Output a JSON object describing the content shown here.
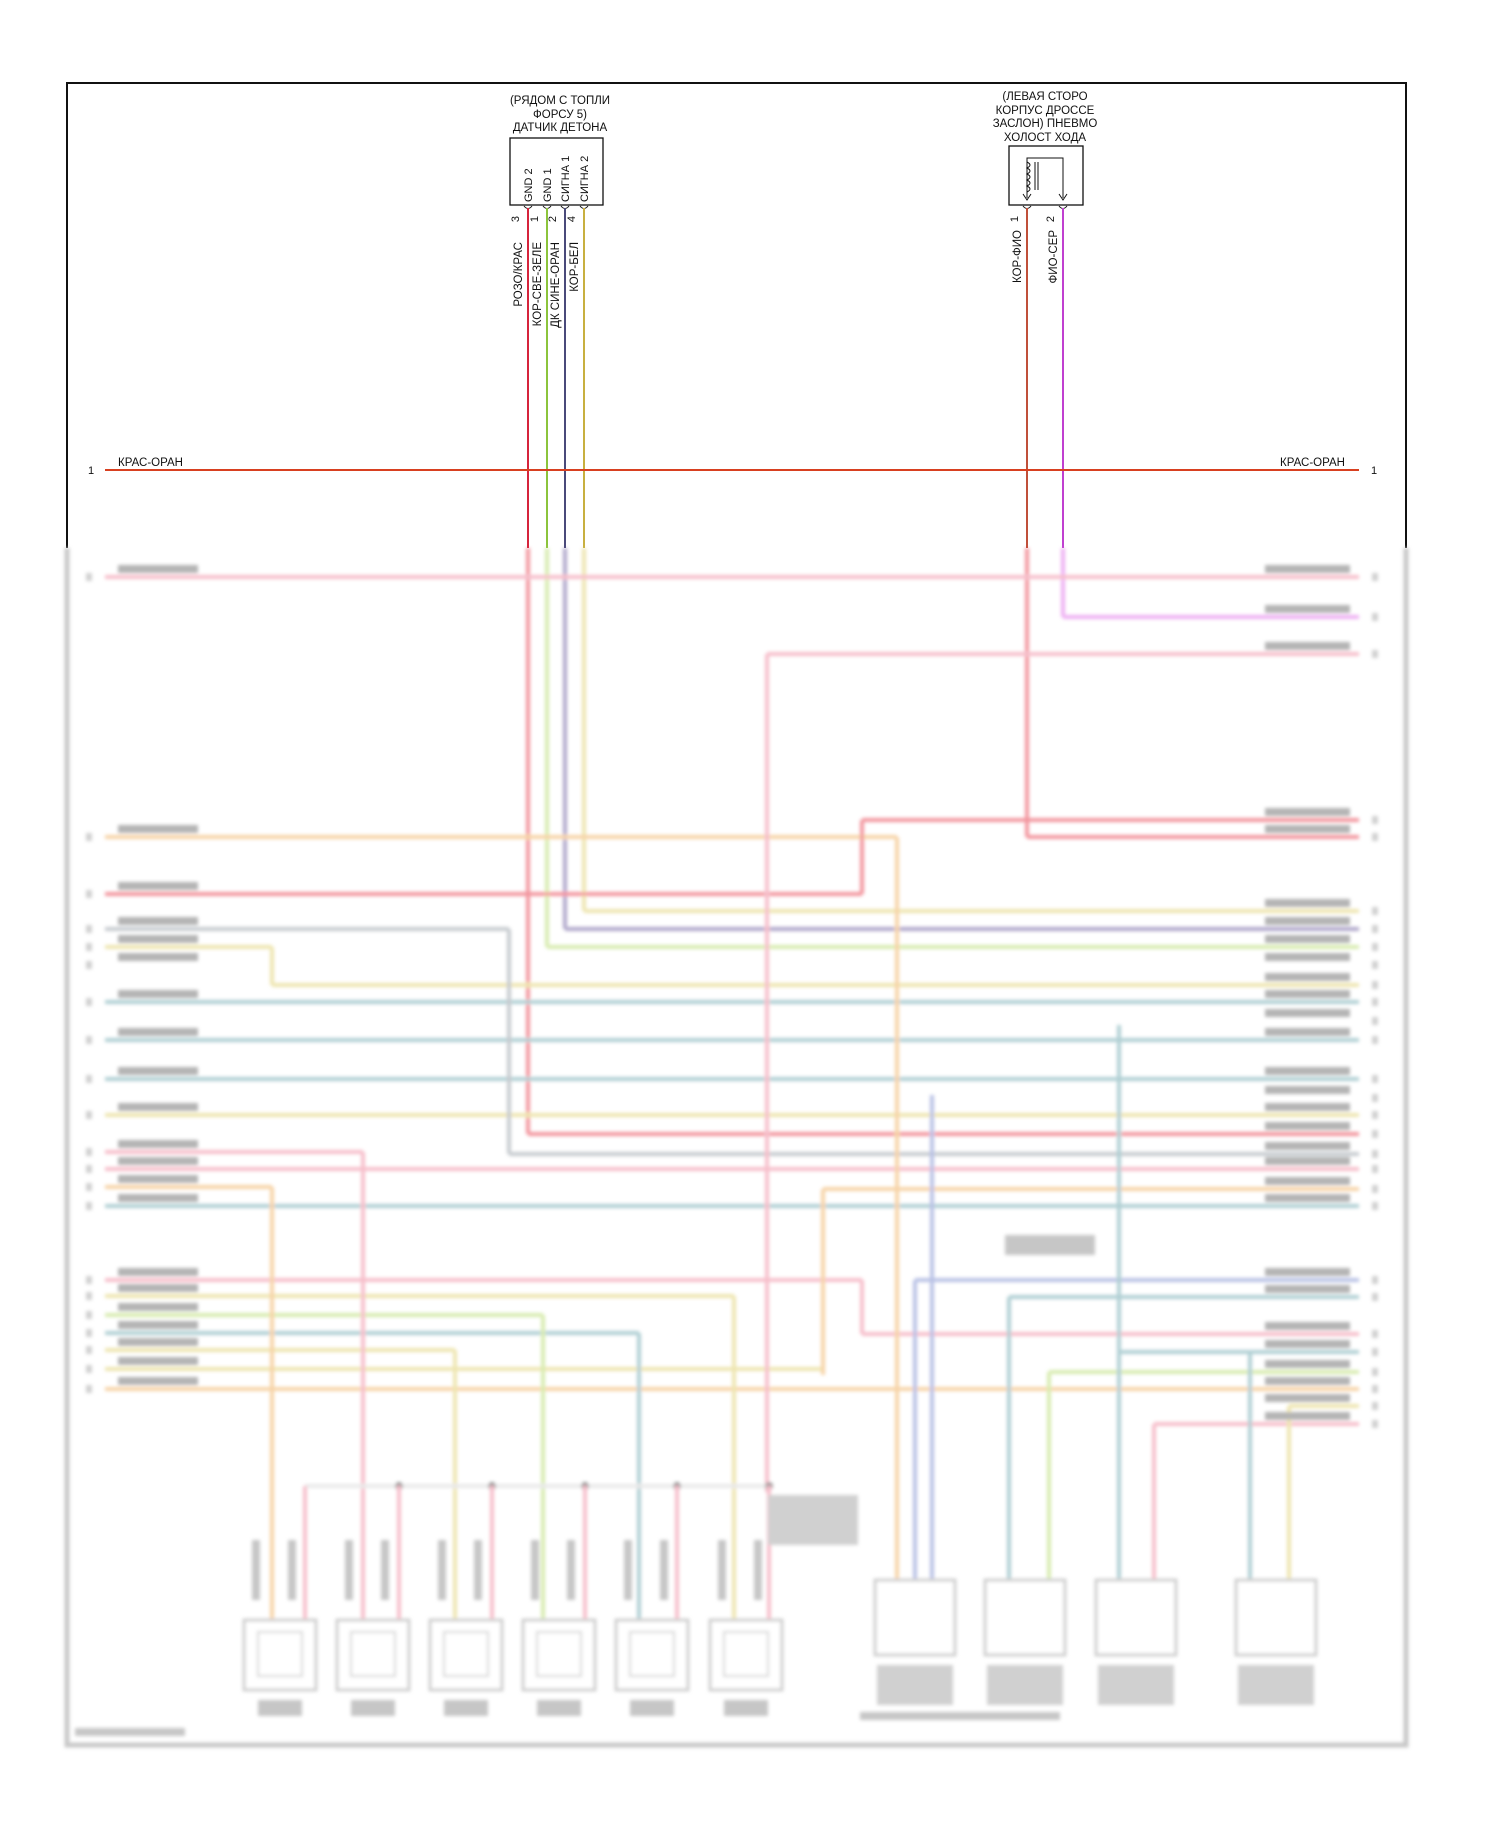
{
  "knock_sensor": {
    "title": [
      "(РЯДОМ С ТОПЛИ",
      "ФОРСУ 5)",
      "ДАТЧИК ДЕТОНА"
    ],
    "terminals": [
      "GND 2",
      "GND 1",
      "СИГНА 1",
      "СИГНА 2"
    ],
    "pins": [
      "3",
      "1",
      "2",
      "4"
    ],
    "wires": [
      "РОЗО/КРАС",
      "КОР-СВЕ-ЗЕЛЕ",
      "ДК СИНЕ-ОРАН",
      "КОР-БЕЛ"
    ],
    "colors": [
      "#d6243c",
      "#8cc43c",
      "#4a4a7a",
      "#c8b040"
    ]
  },
  "idle_air_valve": {
    "title": [
      "(ЛЕВАЯ СТОРО",
      "КОРПУС ДРОССЕ",
      "ЗАСЛОН) ПНЕВМО",
      "ХОЛОСТ ХОДА"
    ],
    "pins": [
      "1",
      "2"
    ],
    "wires": [
      "КОР-ФИО",
      "ФИО-СЕР"
    ],
    "colors": [
      "#c0503a",
      "#c040d0"
    ]
  },
  "power_bus": {
    "left_label": "КРАС-ОРАН",
    "right_label": "КРАС-ОРАН",
    "left_pin": "1",
    "right_pin": "1",
    "color": "#d84020"
  }
}
